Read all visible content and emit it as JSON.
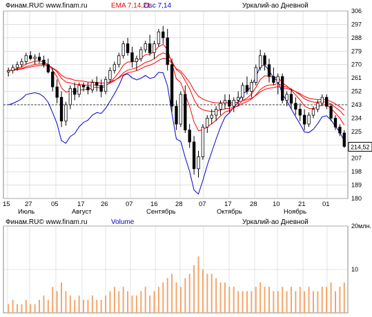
{
  "price_panel": {
    "source": "Финам.RU© www.finam.ru",
    "ema_label": "EMA 7,14,21",
    "osc_label": "Osc 7,14",
    "instrument": "Уркалий-ао Дневной",
    "last_price_label": "214,52"
  },
  "volume_panel": {
    "source": "Финам.RU© www.finam.ru",
    "volume_label": "Volume",
    "instrument": "Уркалий-ао Дневной"
  },
  "colors": {
    "ema": "#ff0000",
    "osc": "#0000cc",
    "volume": "#f4a56c",
    "grid": "#cccccc",
    "dashed_level": "#000000"
  },
  "chart_data": [
    {
      "type": "candlestick",
      "title": "",
      "y_ticks": [
        "306",
        "297",
        "288",
        "279",
        "270",
        "261",
        "252",
        "243",
        "234",
        "225",
        "216",
        "207",
        "198",
        "189",
        "180"
      ],
      "ylim": [
        180,
        306
      ],
      "x_day_ticks": [
        "15",
        "27",
        "05",
        "17",
        "26",
        "07",
        "16",
        "28",
        "07",
        "17",
        "28",
        "10",
        "21",
        "01"
      ],
      "x_month_ticks": [
        "Июль",
        "Август",
        "Сентябрь",
        "Октябрь",
        "Ноябрь"
      ],
      "dashed_level": 243,
      "last_price": 214.52,
      "grid": true,
      "ohlc": [
        [
          265,
          268,
          262,
          266
        ],
        [
          266,
          270,
          264,
          268
        ],
        [
          268,
          272,
          266,
          270
        ],
        [
          270,
          274,
          268,
          272
        ],
        [
          272,
          278,
          270,
          276
        ],
        [
          276,
          279,
          273,
          274
        ],
        [
          274,
          277,
          270,
          275
        ],
        [
          275,
          278,
          271,
          273
        ],
        [
          273,
          276,
          268,
          270
        ],
        [
          270,
          274,
          264,
          265
        ],
        [
          265,
          268,
          252,
          255
        ],
        [
          255,
          260,
          244,
          248
        ],
        [
          248,
          252,
          228,
          232
        ],
        [
          232,
          245,
          229,
          243
        ],
        [
          243,
          256,
          240,
          254
        ],
        [
          254,
          258,
          246,
          250
        ],
        [
          250,
          258,
          248,
          256
        ],
        [
          256,
          258,
          252,
          255
        ],
        [
          255,
          258,
          250,
          253
        ],
        [
          253,
          260,
          251,
          258
        ],
        [
          258,
          262,
          252,
          256
        ],
        [
          256,
          260,
          248,
          252
        ],
        [
          252,
          262,
          250,
          260
        ],
        [
          260,
          268,
          258,
          266
        ],
        [
          266,
          272,
          264,
          270
        ],
        [
          270,
          278,
          268,
          276
        ],
        [
          276,
          286,
          274,
          284
        ],
        [
          284,
          288,
          276,
          278
        ],
        [
          278,
          282,
          268,
          272
        ],
        [
          272,
          276,
          266,
          274
        ],
        [
          274,
          282,
          272,
          280
        ],
        [
          280,
          286,
          278,
          284
        ],
        [
          284,
          290,
          276,
          278
        ],
        [
          278,
          286,
          274,
          284
        ],
        [
          284,
          294,
          282,
          292
        ],
        [
          292,
          296,
          284,
          288
        ],
        [
          288,
          294,
          266,
          270
        ],
        [
          270,
          274,
          238,
          242
        ],
        [
          242,
          246,
          226,
          230
        ],
        [
          230,
          252,
          228,
          250
        ],
        [
          250,
          256,
          224,
          226
        ],
        [
          226,
          230,
          214,
          218
        ],
        [
          218,
          222,
          196,
          200
        ],
        [
          200,
          212,
          194,
          208
        ],
        [
          208,
          230,
          206,
          228
        ],
        [
          228,
          236,
          224,
          234
        ],
        [
          234,
          240,
          230,
          236
        ],
        [
          236,
          242,
          232,
          240
        ],
        [
          240,
          246,
          236,
          244
        ],
        [
          244,
          250,
          240,
          246
        ],
        [
          246,
          250,
          238,
          242
        ],
        [
          242,
          248,
          238,
          246
        ],
        [
          246,
          252,
          242,
          248
        ],
        [
          248,
          258,
          246,
          256
        ],
        [
          256,
          262,
          250,
          252
        ],
        [
          252,
          260,
          248,
          258
        ],
        [
          258,
          270,
          256,
          268
        ],
        [
          268,
          280,
          266,
          276
        ],
        [
          276,
          278,
          266,
          270
        ],
        [
          270,
          274,
          258,
          262
        ],
        [
          262,
          268,
          256,
          258
        ],
        [
          258,
          264,
          250,
          262
        ],
        [
          262,
          264,
          244,
          246
        ],
        [
          246,
          252,
          242,
          250
        ],
        [
          250,
          254,
          240,
          244
        ],
        [
          244,
          248,
          236,
          240
        ],
        [
          240,
          244,
          232,
          236
        ],
        [
          236,
          240,
          226,
          230
        ],
        [
          230,
          238,
          228,
          236
        ],
        [
          236,
          242,
          234,
          240
        ],
        [
          240,
          246,
          238,
          244
        ],
        [
          244,
          250,
          242,
          248
        ],
        [
          248,
          250,
          240,
          242
        ],
        [
          242,
          244,
          232,
          234
        ],
        [
          234,
          236,
          226,
          228
        ],
        [
          228,
          230,
          222,
          224
        ],
        [
          224,
          226,
          214,
          215
        ]
      ]
    },
    {
      "type": "bar",
      "title": "",
      "series_label": "Volume",
      "y_ticks": [
        "20млн.",
        "10"
      ],
      "ylim": [
        0,
        20
      ],
      "values": [
        2,
        3,
        2,
        2,
        3,
        2,
        2,
        3,
        4,
        3,
        6,
        5,
        7,
        5,
        4,
        3,
        4,
        3,
        3,
        4,
        3,
        3,
        4,
        5,
        6,
        5,
        6,
        5,
        4,
        4,
        5,
        6,
        4,
        5,
        6,
        7,
        8,
        9,
        7,
        6,
        8,
        9,
        11,
        13,
        10,
        9,
        9,
        8,
        7,
        7,
        6,
        6,
        5,
        5,
        5,
        5,
        6,
        7,
        6,
        6,
        5,
        5,
        6,
        5,
        6,
        5,
        6,
        5,
        6,
        5,
        5,
        6,
        6,
        7,
        5,
        6,
        7
      ]
    }
  ]
}
